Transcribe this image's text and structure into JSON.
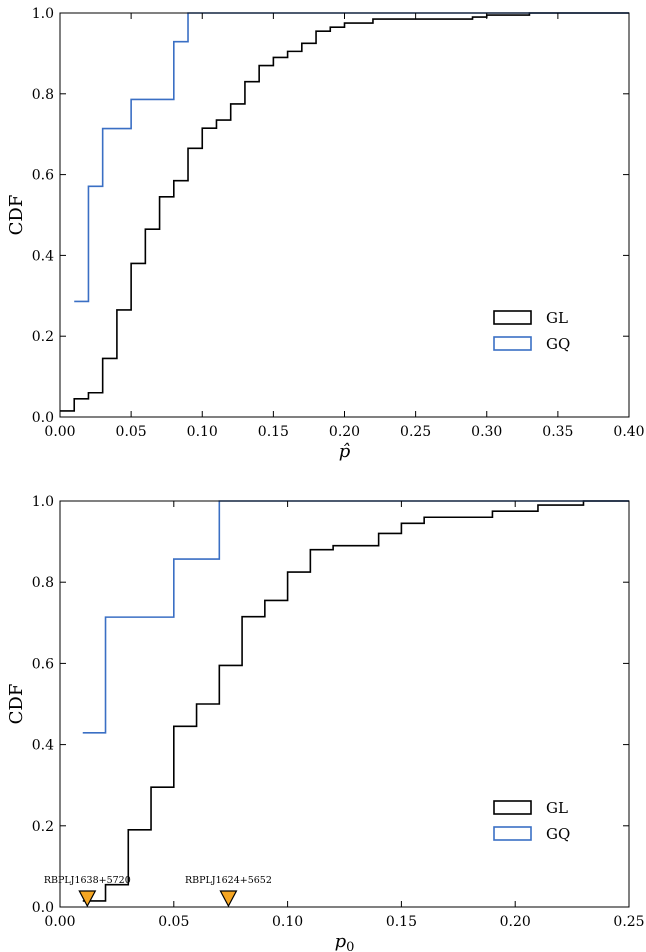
{
  "chart_data": [
    {
      "type": "line",
      "step": true,
      "xlabel": "p̂",
      "ylabel": "CDF",
      "xlim": [
        0.0,
        0.4
      ],
      "ylim": [
        0.0,
        1.0
      ],
      "xticks": [
        "0.00",
        "0.05",
        "0.10",
        "0.15",
        "0.20",
        "0.25",
        "0.30",
        "0.35",
        "0.40"
      ],
      "yticks": [
        "0.0",
        "0.2",
        "0.4",
        "0.6",
        "0.8",
        "1.0"
      ],
      "grid": false,
      "legend_position": "lower-right",
      "series": [
        {
          "name": "GL",
          "color": "#000000",
          "x": [
            0.0,
            0.01,
            0.02,
            0.03,
            0.04,
            0.05,
            0.06,
            0.07,
            0.08,
            0.09,
            0.1,
            0.11,
            0.12,
            0.13,
            0.14,
            0.15,
            0.16,
            0.17,
            0.18,
            0.19,
            0.2,
            0.22,
            0.29,
            0.3,
            0.33,
            0.4
          ],
          "y": [
            0.015,
            0.045,
            0.06,
            0.145,
            0.265,
            0.38,
            0.465,
            0.545,
            0.585,
            0.665,
            0.715,
            0.735,
            0.775,
            0.83,
            0.87,
            0.89,
            0.905,
            0.925,
            0.955,
            0.965,
            0.975,
            0.985,
            0.99,
            0.995,
            1.0,
            1.0
          ]
        },
        {
          "name": "GQ",
          "color": "#3a6fc4",
          "x": [
            0.01,
            0.02,
            0.03,
            0.05,
            0.08,
            0.09,
            0.4
          ],
          "y": [
            0.286,
            0.571,
            0.714,
            0.786,
            0.929,
            1.0,
            1.0
          ]
        }
      ]
    },
    {
      "type": "line",
      "step": true,
      "xlabel": "p0",
      "ylabel": "CDF",
      "xlim": [
        0.0,
        0.25
      ],
      "ylim": [
        0.0,
        1.0
      ],
      "xticks": [
        "0.00",
        "0.05",
        "0.10",
        "0.15",
        "0.20",
        "0.25"
      ],
      "yticks": [
        "0.0",
        "0.2",
        "0.4",
        "0.6",
        "0.8",
        "1.0"
      ],
      "grid": false,
      "legend_position": "lower-right",
      "series": [
        {
          "name": "GL",
          "color": "#000000",
          "x": [
            0.01,
            0.02,
            0.03,
            0.04,
            0.05,
            0.06,
            0.07,
            0.08,
            0.09,
            0.1,
            0.11,
            0.12,
            0.14,
            0.15,
            0.16,
            0.19,
            0.21,
            0.23,
            0.25
          ],
          "y": [
            0.015,
            0.055,
            0.19,
            0.295,
            0.445,
            0.5,
            0.595,
            0.715,
            0.755,
            0.825,
            0.88,
            0.89,
            0.92,
            0.945,
            0.96,
            0.975,
            0.99,
            1.0,
            1.0
          ]
        },
        {
          "name": "GQ",
          "color": "#3a6fc4",
          "x": [
            0.01,
            0.02,
            0.05,
            0.07,
            0.25
          ],
          "y": [
            0.429,
            0.714,
            0.857,
            1.0,
            1.0
          ]
        }
      ],
      "markers": [
        {
          "label": "RBPLJ1638+5720",
          "x": 0.012,
          "color": "#f5a623"
        },
        {
          "label": "RBPLJ1624+5652",
          "x": 0.074,
          "color": "#f5a623"
        }
      ]
    }
  ]
}
